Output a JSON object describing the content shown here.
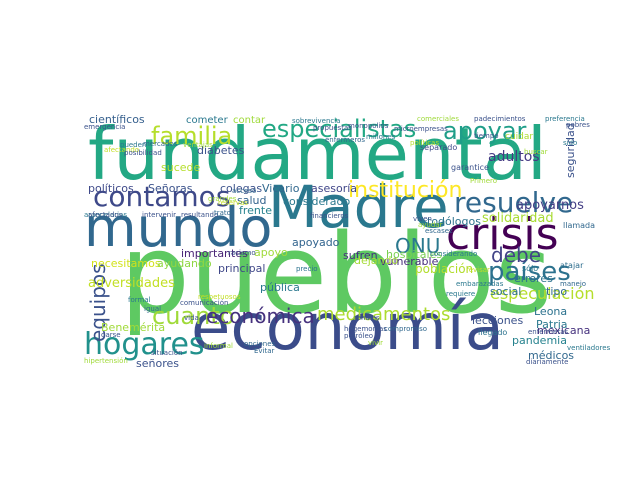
{
  "wordcloud": {
    "palette": [
      "#440154",
      "#443983",
      "#31688e",
      "#21918c",
      "#35b779",
      "#90d743",
      "#fde725"
    ],
    "words": [
      {
        "text": "pueblos",
        "color": "#5ec962"
      },
      {
        "text": "fundamental",
        "color": "#23a884"
      },
      {
        "text": "economía",
        "color": "#3b4c8a"
      },
      {
        "text": "mundo",
        "color": "#31688e"
      },
      {
        "text": "Madre",
        "color": "#2a788e"
      },
      {
        "text": "crisis",
        "color": "#440154"
      },
      {
        "text": "países",
        "color": "#2c728e"
      },
      {
        "text": "hogares",
        "color": "#21918c"
      },
      {
        "text": "especialistas",
        "color": "#22a884"
      },
      {
        "text": "contamos",
        "color": "#3e4989"
      },
      {
        "text": "resuelve",
        "color": "#31688e"
      },
      {
        "text": "institución",
        "color": "#fde725"
      },
      {
        "text": "familia",
        "color": "#b5de2b"
      },
      {
        "text": "apoyar",
        "color": "#1f9e89"
      },
      {
        "text": "cuanto",
        "color": "#a0da39"
      },
      {
        "text": "económica",
        "color": "#46327e"
      },
      {
        "text": "medicamentos",
        "color": "#addc30"
      },
      {
        "text": "ONU",
        "color": "#2a788e"
      },
      {
        "text": "debe",
        "color": "#414487"
      },
      {
        "text": "equipos",
        "color": "#3b528b"
      },
      {
        "text": "especulación",
        "color": "#b5de2b"
      },
      {
        "text": "adversidades",
        "color": "#c2df23"
      },
      {
        "text": "científicos",
        "color": "#355f8d"
      },
      {
        "text": "cometer",
        "color": "#2a788e"
      },
      {
        "text": "contar",
        "color": "#9fda3a"
      },
      {
        "text": "sobrevivencia",
        "color": "#2a788e"
      },
      {
        "text": "seguridad",
        "color": "#3b528b"
      },
      {
        "text": "adultos",
        "color": "#443a83"
      },
      {
        "text": "apoyarnos",
        "color": "#433e85"
      },
      {
        "text": "solidaridad",
        "color": "#a8db34"
      },
      {
        "text": "todólogos",
        "color": "#2c728e"
      },
      {
        "text": "salud",
        "color": "#33638d"
      },
      {
        "text": "colegas",
        "color": "#3b528b"
      },
      {
        "text": "Vicario",
        "color": "#31688e"
      },
      {
        "text": "asesoría",
        "color": "#404688"
      },
      {
        "text": "políticos",
        "color": "#3e4989"
      },
      {
        "text": "Señoras",
        "color": "#3b528b"
      },
      {
        "text": "frente",
        "color": "#26828e"
      },
      {
        "text": "considerado",
        "color": "#2a788e"
      },
      {
        "text": "importantes",
        "color": "#482475"
      },
      {
        "text": "apoyo",
        "color": "#9fda3a"
      },
      {
        "text": "apoyado",
        "color": "#32648e"
      },
      {
        "text": "sufren",
        "color": "#46327e"
      },
      {
        "text": "vulnerable",
        "color": "#472d7b"
      },
      {
        "text": "errores",
        "color": "#2c728e"
      },
      {
        "text": "social",
        "color": "#2e6e8e"
      },
      {
        "text": "tipo",
        "color": "#31688e"
      },
      {
        "text": "Patria",
        "color": "#2a788e"
      },
      {
        "text": "Leona",
        "color": "#2c728e"
      },
      {
        "text": "pandemia",
        "color": "#26828e"
      },
      {
        "text": "mexicana",
        "color": "#46327e"
      },
      {
        "text": "lecciones",
        "color": "#3b528b"
      },
      {
        "text": "Benemérita",
        "color": "#a0da39"
      },
      {
        "text": "principal",
        "color": "#3f4788"
      },
      {
        "text": "pública",
        "color": "#2a788e"
      },
      {
        "text": "necesitamos",
        "color": "#d2e21b"
      },
      {
        "text": "médicos",
        "color": "#31688e"
      },
      {
        "text": "señores",
        "color": "#3b528b"
      },
      {
        "text": "dejando",
        "color": "#a5db36"
      },
      {
        "text": "población",
        "color": "#b2dd2d"
      },
      {
        "text": "hospitales",
        "color": "#7ad151"
      },
      {
        "text": "sólo",
        "color": "#2a788e"
      },
      {
        "text": "diabetes",
        "color": "#3b528b"
      },
      {
        "text": "mercados",
        "color": "#31688e"
      },
      {
        "text": "sucede",
        "color": "#b5de2b"
      },
      {
        "text": "ayudando",
        "color": "#90d743"
      },
      {
        "text": "cuidar",
        "color": "#addc30"
      },
      {
        "text": "separado",
        "color": "#3e4a89"
      },
      {
        "text": "garantice",
        "color": "#3b528b"
      },
      {
        "text": "llamada",
        "color": "#31688e"
      },
      {
        "text": "sido",
        "color": "#2a788e"
      },
      {
        "text": "atajar",
        "color": "#2e6e8e"
      },
      {
        "text": "manejo",
        "color": "#31688e"
      },
      {
        "text": "pobres",
        "color": "#3b528b"
      },
      {
        "text": "requiere",
        "color": "#2a788e"
      },
      {
        "text": "llegado",
        "color": "#2c728e"
      },
      {
        "text": "enfermeras",
        "color": "#3b528b"
      },
      {
        "text": "diariamente",
        "color": "#3b528b"
      },
      {
        "text": "ventiladores",
        "color": "#2a788e"
      },
      {
        "text": "situación",
        "color": "#3b528b"
      },
      {
        "text": "Evitar",
        "color": "#31688e"
      },
      {
        "text": "opciones",
        "color": "#31688e"
      },
      {
        "text": "informal",
        "color": "#9fda3a"
      },
      {
        "text": "vida",
        "color": "#3b528b"
      },
      {
        "text": "hipertensión",
        "color": "#a0da39"
      },
      {
        "text": "darse",
        "color": "#3b528b"
      },
      {
        "text": "igual",
        "color": "#31688e"
      },
      {
        "text": "formal",
        "color": "#2a788e"
      },
      {
        "text": "racismo",
        "color": "#3b528b"
      },
      {
        "text": "precio",
        "color": "#2c728e"
      },
      {
        "text": "renales",
        "color": "#3b528b"
      },
      {
        "text": "compromiso",
        "color": "#31688e"
      },
      {
        "text": "petróleo",
        "color": "#3b528b"
      },
      {
        "text": "vivir",
        "color": "#a0da39"
      },
      {
        "text": "considerando",
        "color": "#2a788e"
      },
      {
        "text": "revisar",
        "color": "#c2df23"
      },
      {
        "text": "viven",
        "color": "#3b528b"
      },
      {
        "text": "ayudar",
        "color": "#a0da39"
      },
      {
        "text": "escasez",
        "color": "#31688e"
      },
      {
        "text": "embarazadas",
        "color": "#2a788e"
      },
      {
        "text": "tiempo",
        "color": "#3b528b"
      },
      {
        "text": "microempresas",
        "color": "#3b528b"
      },
      {
        "text": "millones",
        "color": "#2a788e"
      },
      {
        "text": "enfermeros",
        "color": "#31688e"
      },
      {
        "text": "propuestas",
        "color": "#3b528b"
      },
      {
        "text": "monopolios",
        "color": "#3b528b"
      },
      {
        "text": "comerciales",
        "color": "#9fda3a"
      },
      {
        "text": "padecimientos",
        "color": "#3b528b"
      },
      {
        "text": "preferencia",
        "color": "#2a788e"
      },
      {
        "text": "buscar",
        "color": "#a0da39"
      },
      {
        "text": "Primero",
        "color": "#a0da39"
      },
      {
        "text": "políticas",
        "color": "#b5de2b"
      },
      {
        "text": "intervenir",
        "color": "#3b528b"
      },
      {
        "text": "arancelarias",
        "color": "#2a788e"
      },
      {
        "text": "afectando",
        "color": "#c2df23"
      },
      {
        "text": "emergencia",
        "color": "#3b528b"
      },
      {
        "text": "pueden",
        "color": "#2a788e"
      },
      {
        "text": "resultando",
        "color": "#3b528b"
      },
      {
        "text": "afectados",
        "color": "#3b528b"
      },
      {
        "text": "grandes",
        "color": "#a0da39"
      },
      {
        "text": "reservas",
        "color": "#c2df23"
      },
      {
        "text": "financieros",
        "color": "#3b528b"
      },
      {
        "text": "acceso",
        "color": "#31688e"
      },
      {
        "text": "posibilidad",
        "color": "#3b528b"
      },
      {
        "text": "hegemonías",
        "color": "#3b528b"
      },
      {
        "text": "respetuosos",
        "color": "#c2df23"
      },
      {
        "text": "ventajas",
        "color": "#a0da39"
      },
      {
        "text": "comunicación",
        "color": "#3b528b"
      },
      {
        "text": "trato",
        "color": "#31688e"
      }
    ]
  }
}
